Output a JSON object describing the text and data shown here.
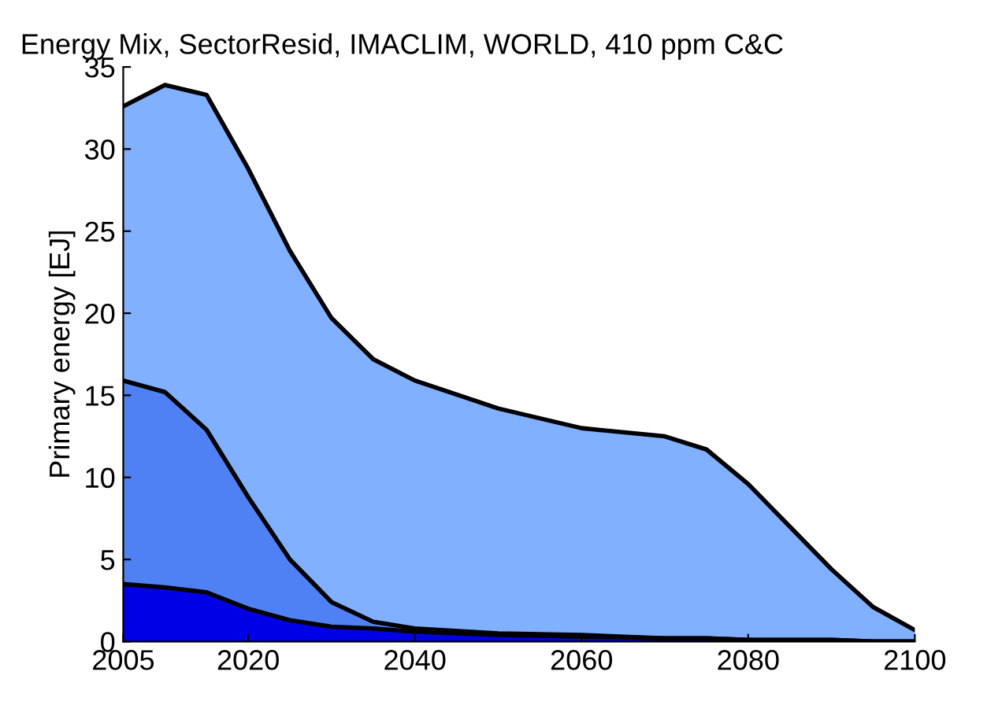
{
  "chart_data": {
    "type": "area",
    "stacked": true,
    "title": "Energy Mix, SectorResid, IMACLIM, WORLD, 410 ppm C&C",
    "ylabel": "Primary energy [EJ]",
    "x": [
      2005,
      2010,
      2015,
      2020,
      2025,
      2030,
      2035,
      2040,
      2050,
      2060,
      2070,
      2075,
      2080,
      2090,
      2095,
      2100
    ],
    "series": [
      {
        "color": "#0000e6",
        "values": [
          3.5,
          3.3,
          3.0,
          2.0,
          1.3,
          0.9,
          0.8,
          0.6,
          0.4,
          0.3,
          0.2,
          0.2,
          0.1,
          0.1,
          0,
          0
        ]
      },
      {
        "color": "#4f81f5",
        "values": [
          12.4,
          11.9,
          9.9,
          6.8,
          3.7,
          1.5,
          0.4,
          0.2,
          0.1,
          0.1,
          0,
          0,
          0,
          0,
          0,
          0
        ]
      },
      {
        "color": "#80b0ff",
        "values": [
          16.7,
          18.7,
          20.4,
          20.0,
          18.8,
          17.3,
          16.0,
          15.1,
          13.7,
          12.6,
          12.3,
          11.5,
          9.5,
          4.3,
          2.1,
          0.7
        ]
      }
    ],
    "xlim": [
      2005,
      2100
    ],
    "xticks": [
      2005,
      2020,
      2040,
      2060,
      2080,
      2100
    ],
    "ylim": [
      0,
      35
    ],
    "yticks": [
      0,
      5,
      10,
      15,
      20,
      25,
      30,
      35
    ],
    "grid": false,
    "legend": false
  }
}
